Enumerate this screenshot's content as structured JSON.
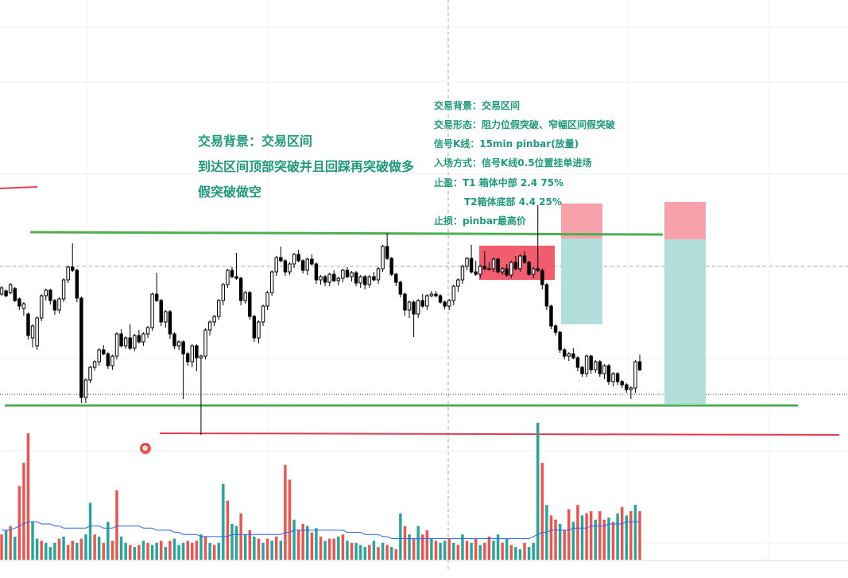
{
  "annotations": {
    "left": [
      "交易背景：交易区间",
      "到达区间顶部突破并且回踩再突破做多",
      "假突破做空"
    ],
    "right": [
      "交易背景：交易区间",
      "交易形态：阻力位假突破、窄幅区间假突破",
      "信号K线：15min pinbar(放量)",
      "入场方式：信号K线0.5位置挂单进场",
      "止盈：T1  箱体中部  2.4   75%",
      "T2箱体底部   4.4   25%",
      "止损：pinbar最高价"
    ]
  },
  "icons": {
    "alarm": "alarm-clock-icon"
  },
  "colors": {
    "up": "#26a69a",
    "down": "#ef5350",
    "wick": "#000000",
    "support_line": "#4caf50",
    "stop_line": "#e53950",
    "vol_up": "#26a69a",
    "vol_down": "#ef5350",
    "vol_ma": "#2962ff",
    "annotation_text": "#1e9a7a",
    "zone_profit": "#b2dfdb",
    "zone_loss": "#f7a1ab"
  },
  "chart_data": {
    "type": "candlestick",
    "grid": true,
    "candles": [
      [
        370,
        362,
        366
      ],
      [
        366,
        372,
        368
      ],
      [
        368,
        358,
        363
      ],
      [
        363,
        378,
        376
      ],
      [
        376,
        385,
        388
      ],
      [
        388,
        382,
        395
      ],
      [
        395,
        422,
        425
      ],
      [
        425,
        410,
        435
      ],
      [
        435,
        400,
        438
      ],
      [
        400,
        372,
        402
      ],
      [
        372,
        365,
        376
      ],
      [
        365,
        378,
        381
      ],
      [
        378,
        390,
        394
      ],
      [
        390,
        376,
        392
      ],
      [
        376,
        352,
        378
      ],
      [
        352,
        336,
        354
      ],
      [
        336,
        340,
        308
      ],
      [
        340,
        375,
        378
      ],
      [
        375,
        500,
        505
      ],
      [
        500,
        478,
        505
      ],
      [
        478,
        462,
        480
      ],
      [
        462,
        455,
        464
      ],
      [
        455,
        440,
        458
      ],
      [
        440,
        445,
        436
      ],
      [
        445,
        460,
        462
      ],
      [
        460,
        448,
        463
      ],
      [
        448,
        420,
        450
      ],
      [
        420,
        435,
        416
      ],
      [
        435,
        425,
        437
      ],
      [
        425,
        438,
        410
      ],
      [
        438,
        422,
        440
      ],
      [
        422,
        430,
        417
      ],
      [
        430,
        420,
        433
      ],
      [
        420,
        412,
        423
      ],
      [
        412,
        370,
        414
      ],
      [
        370,
        378,
        345
      ],
      [
        378,
        405,
        408
      ],
      [
        405,
        392,
        410
      ],
      [
        392,
        420,
        424
      ],
      [
        420,
        435,
        437
      ],
      [
        435,
        430,
        438
      ],
      [
        430,
        445,
        500
      ],
      [
        445,
        455,
        458
      ],
      [
        455,
        435,
        460
      ],
      [
        435,
        450,
        465
      ],
      [
        450,
        448,
        545
      ],
      [
        448,
        415,
        450
      ],
      [
        415,
        405,
        420
      ],
      [
        405,
        398,
        408
      ],
      [
        398,
        378,
        400
      ],
      [
        378,
        358,
        382
      ],
      [
        358,
        340,
        360
      ],
      [
        340,
        348,
        338
      ],
      [
        348,
        350,
        320
      ],
      [
        350,
        378,
        382
      ],
      [
        378,
        368,
        380
      ],
      [
        368,
        398,
        400
      ],
      [
        398,
        425,
        428
      ],
      [
        425,
        405,
        430
      ],
      [
        405,
        385,
        408
      ],
      [
        385,
        368,
        388
      ],
      [
        368,
        342,
        370
      ],
      [
        342,
        324,
        345
      ],
      [
        324,
        328,
        312
      ],
      [
        328,
        342,
        345
      ],
      [
        342,
        332,
        344
      ],
      [
        332,
        320,
        335
      ],
      [
        320,
        328,
        316
      ],
      [
        328,
        340,
        342
      ],
      [
        340,
        326,
        344
      ],
      [
        326,
        332,
        322
      ],
      [
        332,
        352,
        355
      ],
      [
        352,
        348,
        356
      ],
      [
        348,
        355,
        358
      ],
      [
        355,
        345,
        358
      ],
      [
        345,
        353,
        342
      ],
      [
        353,
        350,
        357
      ],
      [
        350,
        340,
        353
      ],
      [
        340,
        348,
        338
      ],
      [
        348,
        343,
        352
      ],
      [
        343,
        356,
        358
      ],
      [
        356,
        348,
        360
      ],
      [
        348,
        358,
        362
      ],
      [
        358,
        348,
        360
      ],
      [
        348,
        352,
        344
      ],
      [
        352,
        338,
        355
      ],
      [
        338,
        310,
        340
      ],
      [
        310,
        325,
        295
      ],
      [
        325,
        345,
        328
      ],
      [
        345,
        355,
        358
      ],
      [
        355,
        370,
        372
      ],
      [
        370,
        390,
        395
      ],
      [
        390,
        380,
        398
      ],
      [
        380,
        395,
        422
      ],
      [
        395,
        378,
        398
      ],
      [
        378,
        385,
        372
      ],
      [
        385,
        372,
        388
      ],
      [
        372,
        370,
        368
      ],
      [
        370,
        372,
        368
      ],
      [
        372,
        380,
        375
      ],
      [
        380,
        385,
        387
      ],
      [
        385,
        378,
        388
      ],
      [
        378,
        360,
        382
      ],
      [
        360,
        352,
        365
      ],
      [
        352,
        335,
        355
      ],
      [
        335,
        325,
        338
      ],
      [
        325,
        342,
        310
      ],
      [
        342,
        345,
        330
      ],
      [
        345,
        335,
        348
      ],
      [
        335,
        338,
        318
      ],
      [
        338,
        338,
        332
      ],
      [
        338,
        326,
        340
      ],
      [
        326,
        342,
        330
      ],
      [
        342,
        338,
        344
      ],
      [
        338,
        346,
        334
      ],
      [
        346,
        330,
        348
      ],
      [
        330,
        338,
        324
      ],
      [
        338,
        322,
        340
      ],
      [
        322,
        330,
        318
      ],
      [
        330,
        345,
        332
      ],
      [
        345,
        338,
        348
      ],
      [
        338,
        340,
        260
      ],
      [
        340,
        358,
        362
      ],
      [
        358,
        385,
        388
      ],
      [
        385,
        410,
        412
      ],
      [
        410,
        418,
        420
      ],
      [
        418,
        440,
        442
      ],
      [
        440,
        448,
        450
      ],
      [
        448,
        445,
        452
      ],
      [
        445,
        450,
        440
      ],
      [
        450,
        462,
        465
      ],
      [
        462,
        470,
        472
      ],
      [
        470,
        448,
        472
      ],
      [
        448,
        465,
        468
      ],
      [
        465,
        455,
        467
      ],
      [
        455,
        470,
        472
      ],
      [
        470,
        460,
        475
      ],
      [
        460,
        480,
        482
      ],
      [
        480,
        470,
        484
      ],
      [
        470,
        480,
        482
      ],
      [
        480,
        484,
        486
      ],
      [
        484,
        490,
        492
      ],
      [
        490,
        488,
        500
      ],
      [
        488,
        455,
        492
      ],
      [
        455,
        465,
        448
      ]
    ],
    "volumes": [
      [
        12,
        "down"
      ],
      [
        14,
        "up"
      ],
      [
        16,
        "down"
      ],
      [
        11,
        "up"
      ],
      [
        35,
        "down"
      ],
      [
        46,
        "down"
      ],
      [
        60,
        "down"
      ],
      [
        18,
        "up"
      ],
      [
        10,
        "up"
      ],
      [
        9,
        "down"
      ],
      [
        8,
        "up"
      ],
      [
        6,
        "up"
      ],
      [
        8,
        "up"
      ],
      [
        10,
        "down"
      ],
      [
        11,
        "up"
      ],
      [
        7,
        "down"
      ],
      [
        9,
        "down"
      ],
      [
        8,
        "up"
      ],
      [
        10,
        "down"
      ],
      [
        12,
        "up"
      ],
      [
        27,
        "up"
      ],
      [
        12,
        "down"
      ],
      [
        11,
        "up"
      ],
      [
        8,
        "down"
      ],
      [
        18,
        "up"
      ],
      [
        9,
        "down"
      ],
      [
        33,
        "down"
      ],
      [
        11,
        "up"
      ],
      [
        8,
        "up"
      ],
      [
        7,
        "down"
      ],
      [
        6,
        "up"
      ],
      [
        7,
        "down"
      ],
      [
        9,
        "up"
      ],
      [
        8,
        "down"
      ],
      [
        7,
        "up"
      ],
      [
        8,
        "up"
      ],
      [
        9,
        "down"
      ],
      [
        6,
        "up"
      ],
      [
        9,
        "down"
      ],
      [
        10,
        "up"
      ],
      [
        7,
        "up"
      ],
      [
        8,
        "up"
      ],
      [
        9,
        "down"
      ],
      [
        8,
        "down"
      ],
      [
        9,
        "down"
      ],
      [
        12,
        "up"
      ],
      [
        11,
        "down"
      ],
      [
        8,
        "up"
      ],
      [
        7,
        "down"
      ],
      [
        8,
        "up"
      ],
      [
        36,
        "up"
      ],
      [
        28,
        "down"
      ],
      [
        17,
        "up"
      ],
      [
        16,
        "up"
      ],
      [
        22,
        "down"
      ],
      [
        12,
        "up"
      ],
      [
        14,
        "down"
      ],
      [
        11,
        "up"
      ],
      [
        10,
        "down"
      ],
      [
        8,
        "up"
      ],
      [
        10,
        "down"
      ],
      [
        9,
        "up"
      ],
      [
        11,
        "down"
      ],
      [
        9,
        "up"
      ],
      [
        45,
        "down"
      ],
      [
        38,
        "down"
      ],
      [
        19,
        "up"
      ],
      [
        14,
        "down"
      ],
      [
        17,
        "down"
      ],
      [
        16,
        "up"
      ],
      [
        13,
        "down"
      ],
      [
        15,
        "up"
      ],
      [
        11,
        "down"
      ],
      [
        9,
        "up"
      ],
      [
        10,
        "down"
      ],
      [
        10,
        "down"
      ],
      [
        11,
        "up"
      ],
      [
        12,
        "down"
      ],
      [
        9,
        "up"
      ],
      [
        8,
        "down"
      ],
      [
        8,
        "up"
      ],
      [
        7,
        "up"
      ],
      [
        6,
        "up"
      ],
      [
        7,
        "down"
      ],
      [
        9,
        "up"
      ],
      [
        6,
        "down"
      ],
      [
        8,
        "up"
      ],
      [
        7,
        "down"
      ],
      [
        6,
        "up"
      ],
      [
        5,
        "down"
      ],
      [
        22,
        "up"
      ],
      [
        16,
        "down"
      ],
      [
        12,
        "up"
      ],
      [
        10,
        "down"
      ],
      [
        16,
        "up"
      ],
      [
        12,
        "down"
      ],
      [
        14,
        "down"
      ],
      [
        10,
        "up"
      ],
      [
        9,
        "down"
      ],
      [
        8,
        "up"
      ],
      [
        9,
        "up"
      ],
      [
        10,
        "down"
      ],
      [
        8,
        "up"
      ],
      [
        7,
        "down"
      ],
      [
        12,
        "up"
      ],
      [
        9,
        "down"
      ],
      [
        8,
        "up"
      ],
      [
        10,
        "down"
      ],
      [
        7,
        "up"
      ],
      [
        8,
        "down"
      ],
      [
        11,
        "down"
      ],
      [
        9,
        "up"
      ],
      [
        12,
        "up"
      ],
      [
        8,
        "down"
      ],
      [
        10,
        "up"
      ],
      [
        7,
        "down"
      ],
      [
        6,
        "up"
      ],
      [
        5,
        "up"
      ],
      [
        8,
        "down"
      ],
      [
        6,
        "up"
      ],
      [
        8,
        "up"
      ],
      [
        65,
        "up"
      ],
      [
        46,
        "down"
      ],
      [
        26,
        "up"
      ],
      [
        21,
        "down"
      ],
      [
        19,
        "down"
      ],
      [
        17,
        "up"
      ],
      [
        14,
        "down"
      ],
      [
        24,
        "down"
      ],
      [
        18,
        "up"
      ],
      [
        26,
        "down"
      ],
      [
        21,
        "up"
      ],
      [
        22,
        "down"
      ],
      [
        23,
        "down"
      ],
      [
        19,
        "up"
      ],
      [
        23,
        "down"
      ],
      [
        19,
        "down"
      ],
      [
        20,
        "up"
      ],
      [
        18,
        "down"
      ],
      [
        22,
        "up"
      ],
      [
        25,
        "down"
      ],
      [
        21,
        "up"
      ],
      [
        23,
        "down"
      ],
      [
        26,
        "up"
      ],
      [
        23,
        "down"
      ]
    ],
    "volume_ma": [
      14,
      14,
      14,
      15,
      16,
      17,
      18,
      18,
      18,
      17,
      17,
      17,
      16,
      16,
      15,
      15,
      15,
      15,
      15,
      15,
      16,
      16,
      16,
      15,
      15,
      15,
      16,
      16,
      16,
      16,
      16,
      16,
      15,
      15,
      15,
      14,
      14,
      14,
      14,
      13,
      13,
      12,
      12,
      12,
      12,
      11,
      11,
      11,
      11,
      11,
      11,
      11,
      12,
      12,
      12,
      12,
      12,
      12,
      12,
      12,
      12,
      12,
      12,
      12,
      13,
      13,
      14,
      14,
      14,
      14,
      14,
      14,
      14,
      14,
      14,
      14,
      14,
      14,
      13,
      13,
      13,
      13,
      12,
      12,
      12,
      12,
      11,
      11,
      10,
      10,
      10,
      10,
      10,
      10,
      10,
      10,
      10,
      10,
      10,
      10,
      10,
      10,
      10,
      10,
      10,
      10,
      10,
      10,
      10,
      10,
      10,
      10,
      10,
      10,
      10,
      10,
      10,
      10,
      10,
      10,
      11,
      12,
      13,
      13,
      14,
      14,
      14,
      14,
      14,
      15,
      15,
      15,
      15,
      16,
      16,
      16,
      16,
      17,
      17,
      17,
      17,
      18,
      18,
      18,
      18
    ]
  }
}
